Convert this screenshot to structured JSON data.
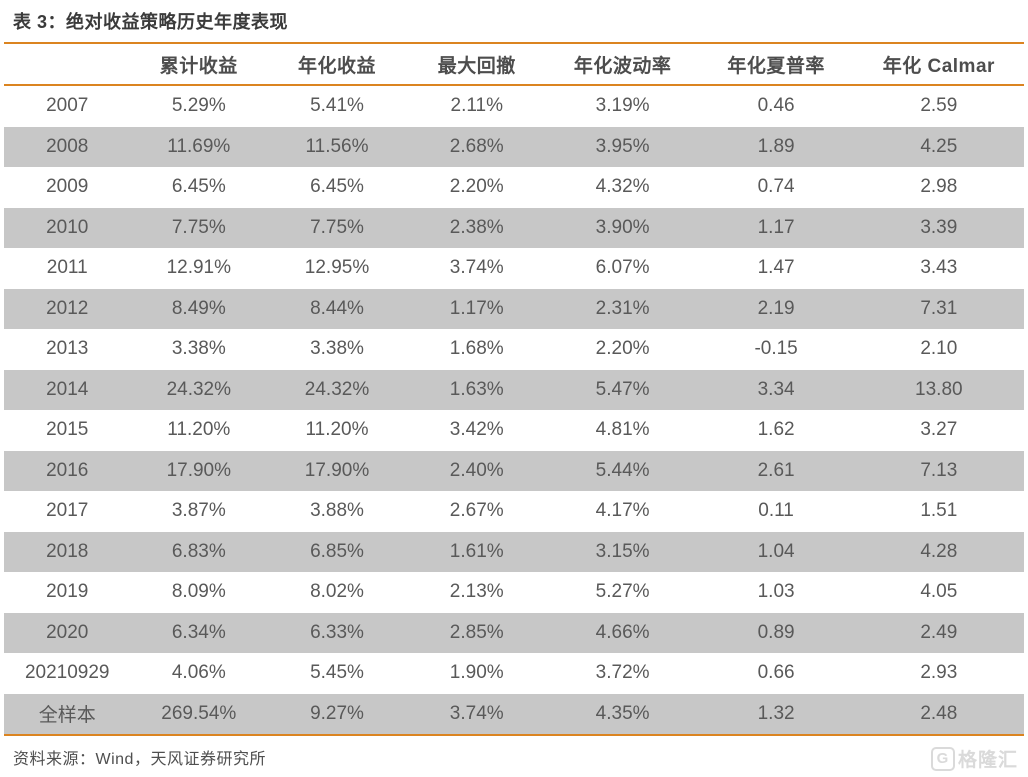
{
  "title": "表 3：绝对收益策略历史年度表现",
  "source_note": "资料来源：Wind，天风证券研究所",
  "watermark": {
    "icon_letter": "G",
    "brand_text": "格隆汇"
  },
  "colors": {
    "accent_orange": "#DB8420",
    "row_stripe_gray": "#C7C7C7",
    "cell_text": "#595959",
    "title_text": "#3B3B3B"
  },
  "chart_data": {
    "type": "table",
    "columns": [
      "",
      "累计收益",
      "年化收益",
      "最大回撤",
      "年化波动率",
      "年化夏普率",
      "年化 Calmar"
    ],
    "rows": [
      [
        "2007",
        "5.29%",
        "5.41%",
        "2.11%",
        "3.19%",
        "0.46",
        "2.59"
      ],
      [
        "2008",
        "11.69%",
        "11.56%",
        "2.68%",
        "3.95%",
        "1.89",
        "4.25"
      ],
      [
        "2009",
        "6.45%",
        "6.45%",
        "2.20%",
        "4.32%",
        "0.74",
        "2.98"
      ],
      [
        "2010",
        "7.75%",
        "7.75%",
        "2.38%",
        "3.90%",
        "1.17",
        "3.39"
      ],
      [
        "2011",
        "12.91%",
        "12.95%",
        "3.74%",
        "6.07%",
        "1.47",
        "3.43"
      ],
      [
        "2012",
        "8.49%",
        "8.44%",
        "1.17%",
        "2.31%",
        "2.19",
        "7.31"
      ],
      [
        "2013",
        "3.38%",
        "3.38%",
        "1.68%",
        "2.20%",
        "-0.15",
        "2.10"
      ],
      [
        "2014",
        "24.32%",
        "24.32%",
        "1.63%",
        "5.47%",
        "3.34",
        "13.80"
      ],
      [
        "2015",
        "11.20%",
        "11.20%",
        "3.42%",
        "4.81%",
        "1.62",
        "3.27"
      ],
      [
        "2016",
        "17.90%",
        "17.90%",
        "2.40%",
        "5.44%",
        "2.61",
        "7.13"
      ],
      [
        "2017",
        "3.87%",
        "3.88%",
        "2.67%",
        "4.17%",
        "0.11",
        "1.51"
      ],
      [
        "2018",
        "6.83%",
        "6.85%",
        "1.61%",
        "3.15%",
        "1.04",
        "4.28"
      ],
      [
        "2019",
        "8.09%",
        "8.02%",
        "2.13%",
        "5.27%",
        "1.03",
        "4.05"
      ],
      [
        "2020",
        "6.34%",
        "6.33%",
        "2.85%",
        "4.66%",
        "0.89",
        "2.49"
      ],
      [
        "20210929",
        "4.06%",
        "5.45%",
        "1.90%",
        "3.72%",
        "0.66",
        "2.93"
      ],
      [
        "全样本",
        "269.54%",
        "9.27%",
        "3.74%",
        "4.35%",
        "1.32",
        "2.48"
      ]
    ],
    "column_widths_pct": [
      12.4,
      13.4,
      13.7,
      13.7,
      14.9,
      15.2,
      16.7
    ],
    "stripe_rule": "even rows (2008, 2010, ...) and 全样本 have gray background",
    "layout": "title above table, orange rules at table top, below header and table bottom"
  }
}
